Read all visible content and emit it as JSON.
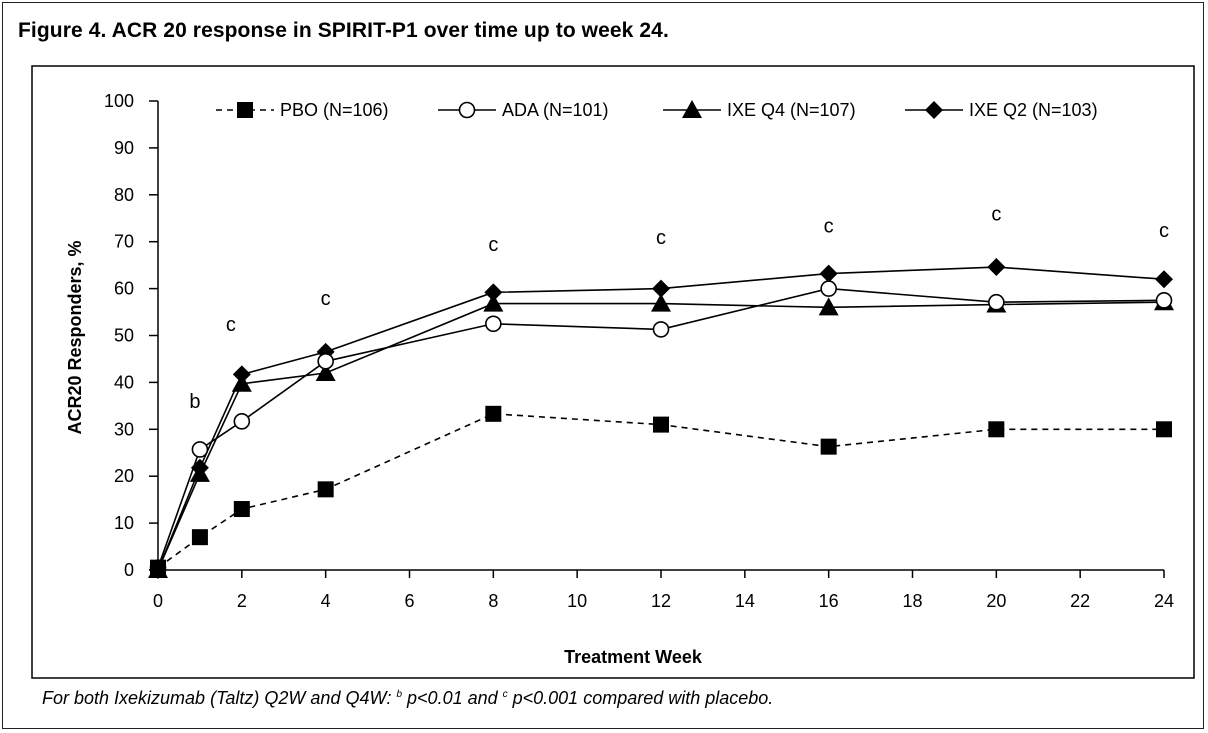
{
  "figure": {
    "title": "Figure 4. ACR 20 response in SPIRIT-P1 over time up to week 24.",
    "footnote_prefix": "For both Ixekizumab (Taltz) Q2W and Q4W: ",
    "footnote_b_mark": "b",
    "footnote_b_text": " p<0.01 and ",
    "footnote_c_mark": "c",
    "footnote_c_text": " p<0.001 compared with placebo."
  },
  "chart_data": {
    "type": "line",
    "xlabel": "Treatment Week",
    "ylabel": "ACR20 Responders, %",
    "xlim": [
      0,
      24
    ],
    "ylim": [
      0,
      100
    ],
    "xticks": [
      0,
      2,
      4,
      6,
      8,
      10,
      12,
      14,
      16,
      18,
      20,
      22,
      24
    ],
    "yticks": [
      0,
      10,
      20,
      30,
      40,
      50,
      60,
      70,
      80,
      90,
      100
    ],
    "grid": false,
    "legend_position": "top",
    "series": [
      {
        "name": "PBO (N=106)",
        "marker": "square",
        "line_style": "dashed",
        "x": [
          0,
          1,
          2,
          4,
          8,
          12,
          16,
          20,
          24
        ],
        "values": [
          0.5,
          7,
          13,
          17.2,
          33.3,
          31,
          26.3,
          30,
          30
        ]
      },
      {
        "name": "ADA (N=101)",
        "marker": "circle-open",
        "line_style": "solid",
        "x": [
          0,
          1,
          2,
          4,
          8,
          12,
          16,
          20,
          24
        ],
        "values": [
          0.5,
          25.7,
          31.7,
          44.5,
          52.5,
          51.3,
          60,
          57.1,
          57.5
        ]
      },
      {
        "name": "IXE Q4 (N=107)",
        "marker": "triangle",
        "line_style": "solid",
        "x": [
          0,
          1,
          2,
          4,
          8,
          12,
          16,
          20,
          24
        ],
        "values": [
          0,
          20.5,
          39.7,
          42,
          56.8,
          56.8,
          56,
          56.6,
          57.1
        ]
      },
      {
        "name": "IXE Q2 (N=103)",
        "marker": "diamond",
        "line_style": "solid",
        "x": [
          0,
          1,
          2,
          4,
          8,
          12,
          16,
          20,
          24
        ],
        "values": [
          0,
          21.8,
          41.7,
          46.5,
          59.2,
          60,
          63.2,
          64.6,
          62
        ]
      }
    ],
    "annotations": [
      {
        "text": "b",
        "x": 1,
        "y": 34.5
      },
      {
        "text": "c",
        "x": 2,
        "y": 51
      },
      {
        "text": "c",
        "x": 4,
        "y": 56.5
      },
      {
        "text": "c",
        "x": 8,
        "y": 68
      },
      {
        "text": "c",
        "x": 12,
        "y": 69.5
      },
      {
        "text": "c",
        "x": 16,
        "y": 72
      },
      {
        "text": "c",
        "x": 20,
        "y": 74.5
      },
      {
        "text": "c",
        "x": 24,
        "y": 71
      }
    ]
  }
}
